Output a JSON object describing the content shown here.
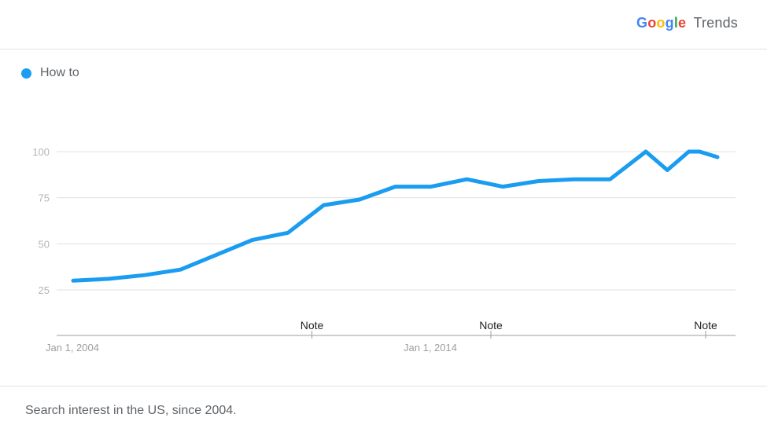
{
  "header": {
    "brand_google": [
      "G",
      "o",
      "o",
      "g",
      "l",
      "e"
    ],
    "brand_trends": "Trends"
  },
  "legend": {
    "label": "How to",
    "color": "#1a9cf0"
  },
  "chart_data": {
    "type": "line",
    "series": [
      {
        "name": "How to",
        "color": "#1a9cf0",
        "x": [
          2004,
          2005,
          2006,
          2007,
          2008,
          2009,
          2010,
          2011,
          2012,
          2013,
          2014,
          2015,
          2016,
          2017,
          2018,
          2019,
          2020,
          2020.6,
          2021.2,
          2021.5,
          2022
        ],
        "values": [
          30,
          31,
          33,
          36,
          44,
          52,
          56,
          71,
          74,
          81,
          81,
          85,
          81,
          84,
          85,
          85,
          100,
          90,
          100,
          100,
          97
        ]
      }
    ],
    "ylim": [
      0,
      100
    ],
    "yticks": [
      25,
      50,
      75,
      100
    ],
    "xticks": [
      {
        "x": 2004,
        "label": "Jan 1, 2004"
      },
      {
        "x": 2014,
        "label": "Jan 1, 2014"
      }
    ],
    "notes": [
      {
        "x": 2011,
        "label": "Note"
      },
      {
        "x": 2016,
        "label": "Note"
      },
      {
        "x": 2022,
        "label": "Note"
      }
    ],
    "grid": true
  },
  "footer": {
    "text": "Search interest in the US, since 2004."
  },
  "colors": {
    "line": "#1a9cf0",
    "grid": "#e0e0e0",
    "axis": "#9e9e9e",
    "google": [
      "#4285F4",
      "#EA4335",
      "#FBBC05",
      "#4285F4",
      "#34A853",
      "#EA4335"
    ]
  }
}
